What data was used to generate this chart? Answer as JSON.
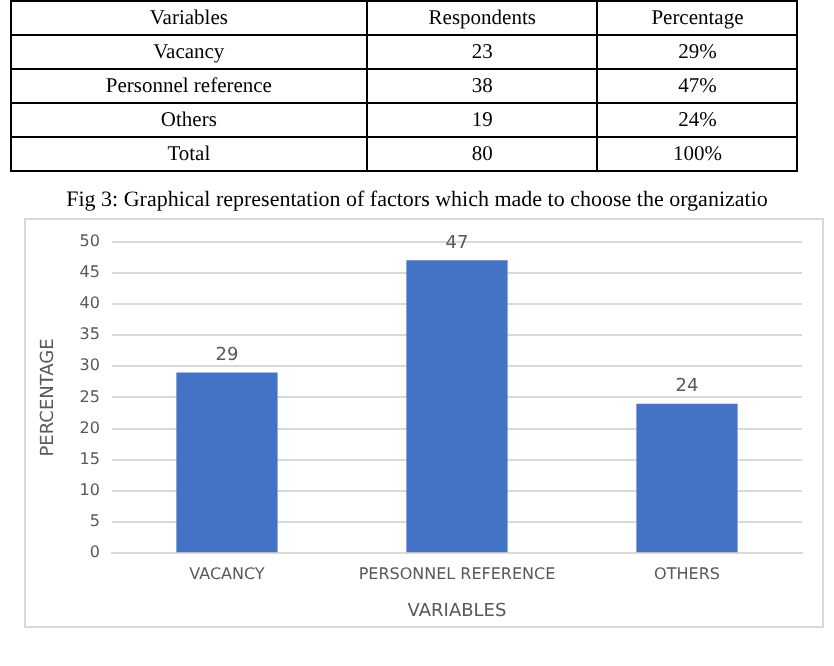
{
  "chart_data": [
    {
      "type": "other",
      "categories": [
        "Variables",
        "Respondents",
        "Percentage"
      ],
      "cell_labels": [
        [
          "Vacancy",
          "23",
          "29%"
        ],
        [
          "Personnel reference",
          "38",
          "47%"
        ],
        [
          "Others",
          "19",
          "24%"
        ],
        [
          "Total",
          "80",
          "100%"
        ]
      ]
    },
    {
      "type": "bar",
      "title": "Fig 3: Graphical representation of factors which made to choose the organizatio",
      "categories": [
        "VACANCY",
        "PERSONNEL REFERENCE",
        "OTHERS"
      ],
      "values": [
        29,
        47,
        24
      ],
      "color": "#4472c4",
      "ylim": [
        0,
        50
      ],
      "yticks": [
        0,
        5,
        10,
        15,
        20,
        25,
        30,
        35,
        40,
        45,
        50
      ],
      "grid": "y",
      "xlabel": "VARIABLES",
      "ylabel": "PERCENTAGE",
      "data_labels": true
    }
  ]
}
